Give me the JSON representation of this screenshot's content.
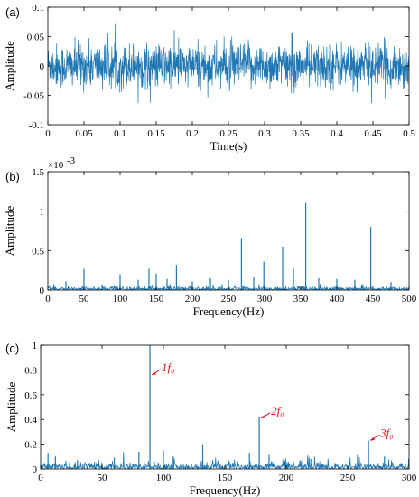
{
  "figure": {
    "colors": {
      "signal": "#1f77b4",
      "annotation": "#e0141e",
      "axis": "#000000"
    }
  },
  "chart_data": [
    {
      "panel_label": "(a)",
      "type": "line",
      "xlabel": "Time(s)",
      "ylabel": "Amplitude",
      "xlim": [
        0,
        0.5
      ],
      "ylim": [
        -0.1,
        0.1
      ],
      "xticks": [
        "0",
        "0.05",
        "0.1",
        "0.15",
        "0.2",
        "0.25",
        "0.3",
        "0.35",
        "0.4",
        "0.45",
        "0.5"
      ],
      "yticks": [
        "-0.1",
        "-0.05",
        "0",
        "0.05",
        "0.1"
      ],
      "grid": false,
      "description_values": {
        "typical_amplitude": 0.025,
        "max_peak": 0.075,
        "min_peak": -0.072
      }
    },
    {
      "panel_label": "(b)",
      "type": "line",
      "xlabel": "Frequency(Hz)",
      "ylabel": "Amplitude",
      "exponent_label": "×10",
      "exponent_power": "-3",
      "xlim": [
        0,
        500
      ],
      "ylim": [
        0,
        1.5
      ],
      "xticks": [
        "0",
        "50",
        "100",
        "150",
        "200",
        "250",
        "300",
        "350",
        "400",
        "450",
        "500"
      ],
      "yticks": [
        "0",
        "0.5",
        "1",
        "1.5"
      ],
      "grid": false,
      "peaks": [
        {
          "x": 25,
          "y": 0.11
        },
        {
          "x": 50,
          "y": 0.27
        },
        {
          "x": 75,
          "y": 0.07
        },
        {
          "x": 100,
          "y": 0.2
        },
        {
          "x": 125,
          "y": 0.13
        },
        {
          "x": 140,
          "y": 0.27
        },
        {
          "x": 150,
          "y": 0.21
        },
        {
          "x": 165,
          "y": 0.14
        },
        {
          "x": 178,
          "y": 0.32
        },
        {
          "x": 200,
          "y": 0.11
        },
        {
          "x": 225,
          "y": 0.15
        },
        {
          "x": 250,
          "y": 0.13
        },
        {
          "x": 268,
          "y": 0.66
        },
        {
          "x": 285,
          "y": 0.16
        },
        {
          "x": 299,
          "y": 0.36
        },
        {
          "x": 325,
          "y": 0.55
        },
        {
          "x": 340,
          "y": 0.28
        },
        {
          "x": 357,
          "y": 1.1
        },
        {
          "x": 375,
          "y": 0.15
        },
        {
          "x": 400,
          "y": 0.14
        },
        {
          "x": 425,
          "y": 0.13
        },
        {
          "x": 447,
          "y": 0.8
        },
        {
          "x": 475,
          "y": 0.1
        }
      ],
      "noise_floor": 0.04
    },
    {
      "panel_label": "(c)",
      "type": "line",
      "xlabel": "Frequency(Hz)",
      "ylabel": "Amplitude",
      "xlim": [
        0,
        300
      ],
      "ylim": [
        0,
        1
      ],
      "xticks": [
        "0",
        "50",
        "100",
        "150",
        "200",
        "250",
        "300"
      ],
      "yticks": [
        "0",
        "0.2",
        "0.4",
        "0.6",
        "0.8",
        "1"
      ],
      "grid": false,
      "peaks": [
        {
          "x": 6,
          "y": 0.13
        },
        {
          "x": 12,
          "y": 0.1
        },
        {
          "x": 30,
          "y": 0.07
        },
        {
          "x": 60,
          "y": 0.09
        },
        {
          "x": 80,
          "y": 0.14
        },
        {
          "x": 89,
          "y": 1.0
        },
        {
          "x": 100,
          "y": 0.15
        },
        {
          "x": 108,
          "y": 0.1
        },
        {
          "x": 132,
          "y": 0.2
        },
        {
          "x": 170,
          "y": 0.13
        },
        {
          "x": 178,
          "y": 0.42
        },
        {
          "x": 186,
          "y": 0.12
        },
        {
          "x": 220,
          "y": 0.08
        },
        {
          "x": 258,
          "y": 0.12
        },
        {
          "x": 267,
          "y": 0.23
        },
        {
          "x": 280,
          "y": 0.1
        }
      ],
      "noise_floor": 0.05,
      "annotations": [
        {
          "text": "1f₀",
          "x": 89,
          "y": 0.76
        },
        {
          "text": "2f₀",
          "x": 178,
          "y": 0.41
        },
        {
          "text": "3f₀",
          "x": 267,
          "y": 0.23
        }
      ]
    }
  ]
}
